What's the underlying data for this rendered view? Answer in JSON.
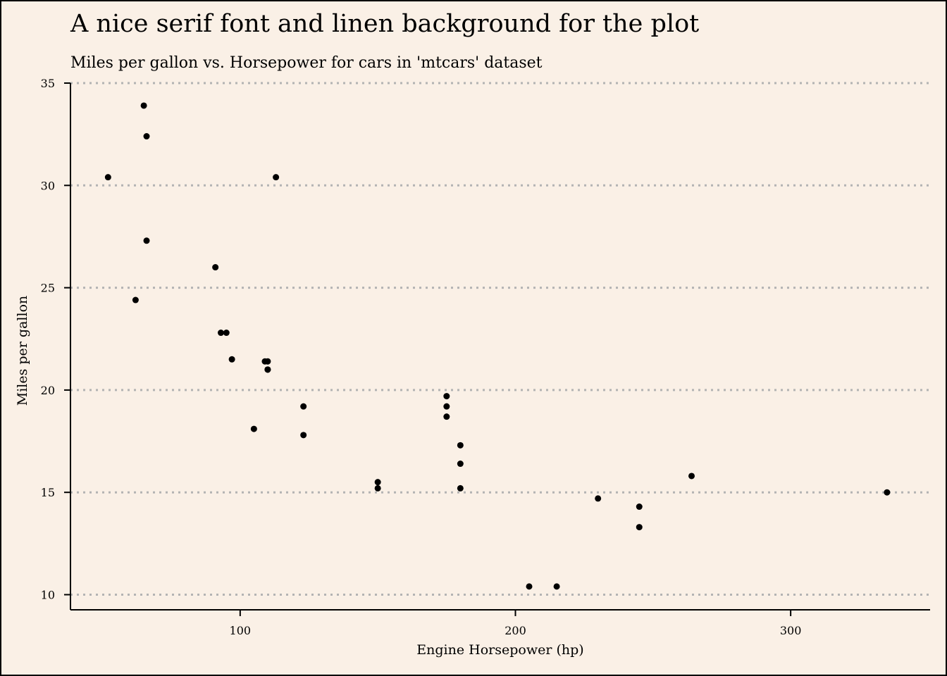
{
  "colors": {
    "background": "#faf0e6",
    "points": "#000000",
    "gridlines": "#b3b3b3"
  },
  "chart_data": {
    "type": "scatter",
    "title": "A nice serif font and linen background for the plot",
    "subtitle": "Miles per gallon vs. Horsepower for cars in 'mtcars' dataset",
    "xlabel": "Engine Horsepower (hp)",
    "ylabel": "Miles per gallon",
    "xlim": [
      38.35,
      350.65
    ],
    "ylim": [
      9.26,
      35.0
    ],
    "xticks": [
      100,
      200,
      300
    ],
    "yticks": [
      10,
      15,
      20,
      25,
      30,
      35
    ],
    "grid": "horizontal dotted",
    "legend": "none",
    "points": [
      {
        "x": 110,
        "y": 21.0
      },
      {
        "x": 110,
        "y": 21.0
      },
      {
        "x": 93,
        "y": 22.8
      },
      {
        "x": 110,
        "y": 21.4
      },
      {
        "x": 175,
        "y": 18.7
      },
      {
        "x": 105,
        "y": 18.1
      },
      {
        "x": 245,
        "y": 14.3
      },
      {
        "x": 62,
        "y": 24.4
      },
      {
        "x": 95,
        "y": 22.8
      },
      {
        "x": 123,
        "y": 19.2
      },
      {
        "x": 123,
        "y": 17.8
      },
      {
        "x": 180,
        "y": 16.4
      },
      {
        "x": 180,
        "y": 17.3
      },
      {
        "x": 180,
        "y": 15.2
      },
      {
        "x": 205,
        "y": 10.4
      },
      {
        "x": 215,
        "y": 10.4
      },
      {
        "x": 230,
        "y": 14.7
      },
      {
        "x": 66,
        "y": 32.4
      },
      {
        "x": 52,
        "y": 30.4
      },
      {
        "x": 65,
        "y": 33.9
      },
      {
        "x": 97,
        "y": 21.5
      },
      {
        "x": 150,
        "y": 15.5
      },
      {
        "x": 150,
        "y": 15.2
      },
      {
        "x": 245,
        "y": 13.3
      },
      {
        "x": 175,
        "y": 19.2
      },
      {
        "x": 66,
        "y": 27.3
      },
      {
        "x": 91,
        "y": 26.0
      },
      {
        "x": 113,
        "y": 30.4
      },
      {
        "x": 264,
        "y": 15.8
      },
      {
        "x": 175,
        "y": 19.7
      },
      {
        "x": 335,
        "y": 15.0
      },
      {
        "x": 109,
        "y": 21.4
      }
    ]
  }
}
